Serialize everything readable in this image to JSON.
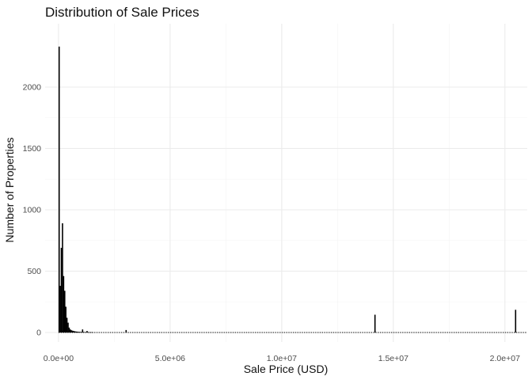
{
  "chart_data": {
    "type": "bar",
    "title": "Distribution of Sale Prices",
    "xlabel": "Sale Price (USD)",
    "ylabel": "Number of Properties",
    "xlim": [
      -600000,
      21000000
    ],
    "ylim": [
      0,
      2400
    ],
    "x_ticks": [
      0,
      5000000,
      10000000,
      15000000,
      20000000
    ],
    "x_tick_labels": [
      "0.0e+00",
      "5.0e+06",
      "1.0e+07",
      "1.5e+07",
      "2.0e+07"
    ],
    "y_ticks": [
      0,
      500,
      1000,
      1500,
      2000
    ],
    "y_tick_labels": [
      "0",
      "500",
      "1000",
      "1500",
      "2000"
    ],
    "bin_width": 50000,
    "grid": true,
    "bar_color": "#000000",
    "bins": [
      {
        "x": 0,
        "count": 2330
      },
      {
        "x": 50000,
        "count": 380
      },
      {
        "x": 100000,
        "count": 690
      },
      {
        "x": 150000,
        "count": 890
      },
      {
        "x": 200000,
        "count": 460
      },
      {
        "x": 250000,
        "count": 340
      },
      {
        "x": 300000,
        "count": 210
      },
      {
        "x": 350000,
        "count": 120
      },
      {
        "x": 400000,
        "count": 80
      },
      {
        "x": 450000,
        "count": 40
      },
      {
        "x": 500000,
        "count": 25
      },
      {
        "x": 550000,
        "count": 18
      },
      {
        "x": 600000,
        "count": 15
      },
      {
        "x": 650000,
        "count": 12
      },
      {
        "x": 700000,
        "count": 10
      },
      {
        "x": 750000,
        "count": 8
      },
      {
        "x": 800000,
        "count": 7
      },
      {
        "x": 850000,
        "count": 6
      },
      {
        "x": 900000,
        "count": 5
      },
      {
        "x": 950000,
        "count": 5
      },
      {
        "x": 1000000,
        "count": 4
      },
      {
        "x": 1050000,
        "count": 25
      },
      {
        "x": 1100000,
        "count": 4
      },
      {
        "x": 1150000,
        "count": 3
      },
      {
        "x": 1200000,
        "count": 3
      },
      {
        "x": 1250000,
        "count": 12
      },
      {
        "x": 1300000,
        "count": 3
      },
      {
        "x": 1350000,
        "count": 2
      },
      {
        "x": 1400000,
        "count": 2
      },
      {
        "x": 1450000,
        "count": 2
      },
      {
        "x": 1500000,
        "count": 2
      },
      {
        "x": 3000000,
        "count": 20
      },
      {
        "x": 14150000,
        "count": 145
      },
      {
        "x": 20450000,
        "count": 185
      }
    ]
  }
}
